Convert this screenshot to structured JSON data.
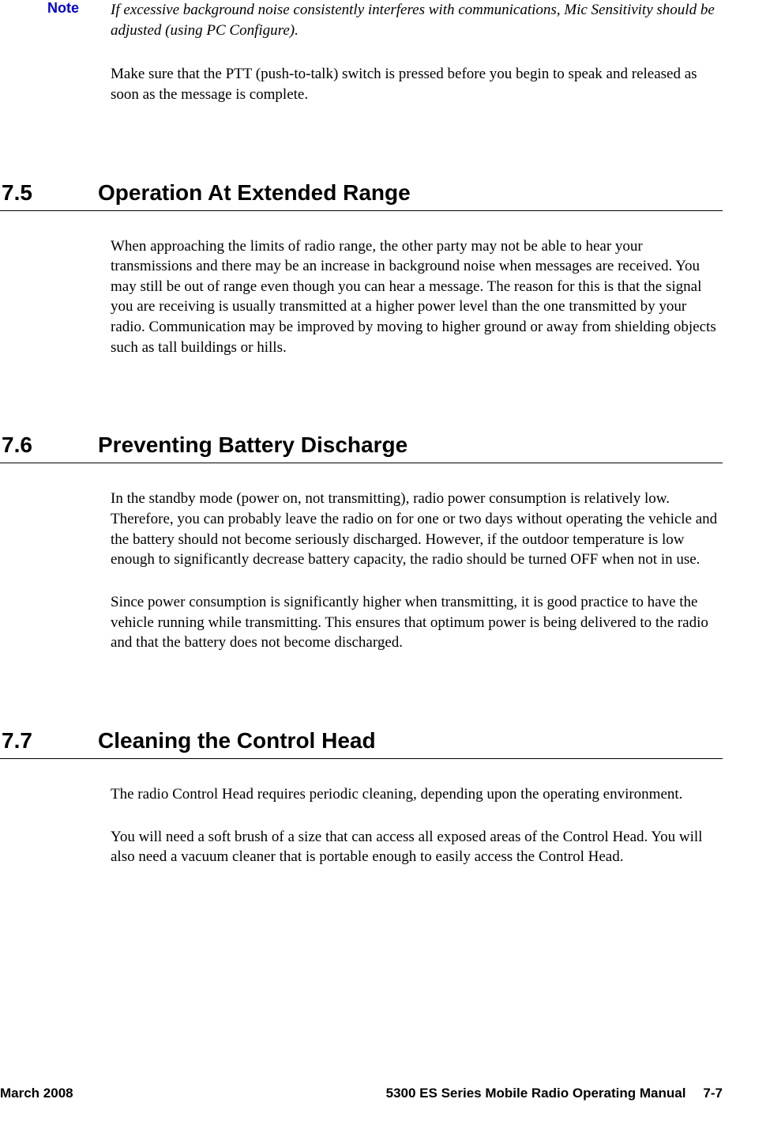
{
  "note": {
    "label": "Note",
    "text": "If excessive background noise consistently interferes with communications, Mic Sensitivity should be adjusted (using PC Configure)."
  },
  "intro_body": "Make sure that the PTT (push-to-talk) switch is pressed before you begin to speak and released as soon as the message is complete.",
  "sections": {
    "s75": {
      "number": "7.5",
      "title": "Operation At Extended Range",
      "p1": "When approaching the limits of radio range, the other party may not be able to hear your transmissions and there may be an increase in background noise when messages are received. You may still be out of range even though you can hear a message. The reason for this is that the signal you are receiving is usually transmitted at a higher power level than the one transmitted by your radio. Communication may be improved by moving to higher ground or away from shielding objects such as tall buildings or hills."
    },
    "s76": {
      "number": "7.6",
      "title": "Preventing Battery Discharge",
      "p1": "In the standby mode (power on, not transmitting), radio power consumption is relatively low. Therefore, you can probably leave the radio on for one or two days without operating the vehicle and the battery should not become seriously discharged. However, if the outdoor temperature is low enough to significantly decrease battery capacity, the radio should be turned OFF when not in use.",
      "p2": "Since power consumption is significantly higher when transmitting, it is good practice to have the vehicle running while transmitting. This ensures that optimum power is being delivered to the radio and that the battery does not become discharged."
    },
    "s77": {
      "number": "7.7",
      "title": "Cleaning the Control Head",
      "p1": "The radio Control Head requires periodic cleaning, depending upon the operating environment.",
      "p2": "You will need a soft brush of a size that can access all exposed areas of the Control Head. You will also need a vacuum cleaner that is portable enough to easily access the Control Head."
    }
  },
  "footer": {
    "left": "March 2008",
    "center": "5300 ES Series Mobile Radio Operating Manual",
    "page": "7-7"
  },
  "styles": {
    "note_color": "#0000cc",
    "text_color": "#000000",
    "background_color": "#ffffff",
    "heading_font": "Arial",
    "body_font": "Times New Roman",
    "heading_fontsize": 28,
    "body_fontsize": 19,
    "footer_fontsize": 17
  }
}
